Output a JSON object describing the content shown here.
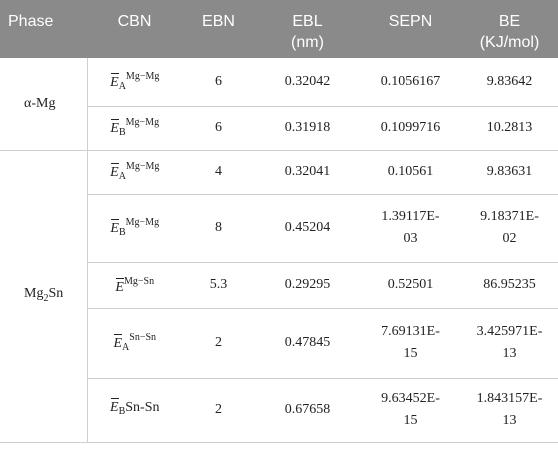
{
  "headers": {
    "phase": "Phase",
    "cbn": "CBN",
    "ebn": "EBN",
    "ebl_line1": "EBL",
    "ebl_line2": "(nm)",
    "sepn": "SEPN",
    "be_line1": "BE",
    "be_line2": "(KJ/mol)"
  },
  "groups": {
    "alpha_mg": "α-Mg",
    "mg2sn_base": "Mg",
    "mg2sn_sub": "2",
    "mg2sn_tail": "Sn"
  },
  "symbol": {
    "e": "E"
  },
  "rows": [
    {
      "sub": "A",
      "sup": "Mg−Mg",
      "ebn": "6",
      "ebl": "0.32042",
      "sepn": "0.1056167",
      "be": "9.83642"
    },
    {
      "sub": "B",
      "sup": "Mg−Mg",
      "ebn": "6",
      "ebl": "0.31918",
      "sepn": "0.1099716",
      "be": "10.2813"
    },
    {
      "sub": "A",
      "sup": "Mg−Mg",
      "ebn": "4",
      "ebl": "0.32041",
      "sepn": "0.10561",
      "be": "9.83631"
    },
    {
      "sub": "B",
      "sup": "Mg−Mg",
      "ebn": "8",
      "ebl": "0.45204",
      "sepn_line1": "1.39117E-",
      "sepn_line2": "03",
      "be_line1": "9.18371E-",
      "be_line2": "02"
    },
    {
      "sub": "",
      "sup": "Mg−Sn",
      "ebn": "5.3",
      "ebl": "0.29295",
      "sepn": "0.52501",
      "be": "86.95235"
    },
    {
      "sub": "A",
      "sup": "Sn−Sn",
      "ebn": "2",
      "ebl": "0.47845",
      "sepn_line1": "7.69131E-",
      "sepn_line2": "15",
      "be_line1": "3.425971E-",
      "be_line2": "13"
    },
    {
      "sub": "B",
      "tail": "Sn-Sn",
      "ebn": "2",
      "ebl": "0.67658",
      "sepn_line1": "9.63452E-",
      "sepn_line2": "15",
      "be_line1": "1.843157E-",
      "be_line2": "13"
    }
  ]
}
